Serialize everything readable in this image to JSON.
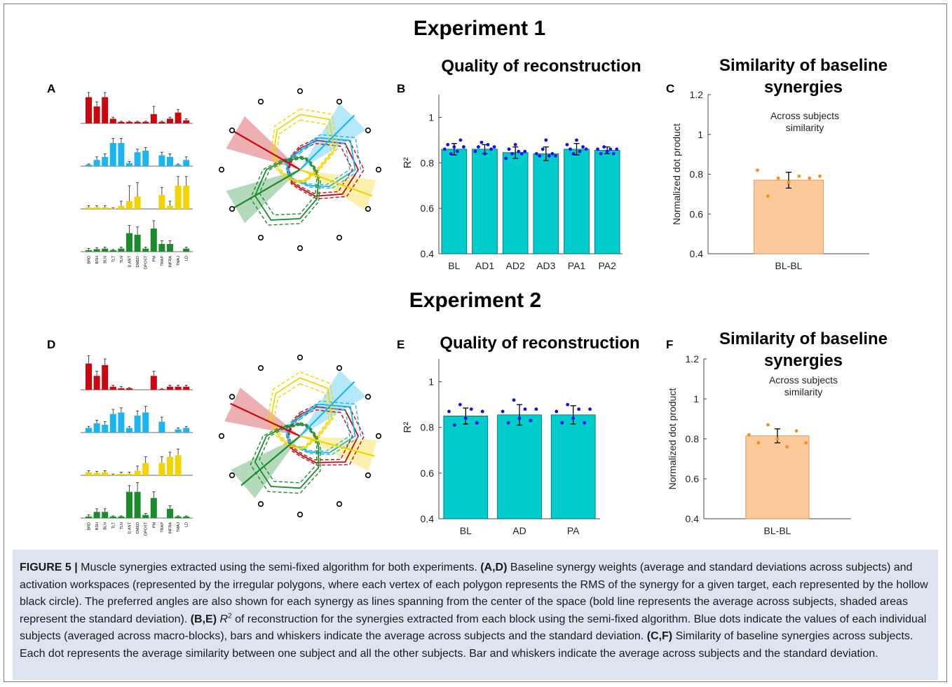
{
  "experiments": [
    {
      "heading": "Experiment 1",
      "panel_weights": "A",
      "panel_quality": "B",
      "panel_similarity": "C",
      "synergy_bars": [
        [
          0.85,
          0.55,
          0.85,
          0.15,
          0.05,
          0.05,
          0.05,
          0.05,
          0.3,
          0.05,
          0.15,
          0.35,
          0.1
        ],
        [
          0.05,
          0.2,
          0.3,
          0.75,
          0.75,
          0.1,
          0.45,
          0.5,
          0.0,
          0.35,
          0.3,
          0.05,
          0.2
        ],
        [
          0.05,
          0.05,
          0.05,
          0.02,
          0.1,
          0.25,
          0.4,
          0.0,
          0.0,
          0.45,
          0.1,
          0.75,
          0.75
        ],
        [
          0.05,
          0.08,
          0.1,
          0.05,
          0.1,
          0.6,
          0.55,
          0.1,
          0.75,
          0.25,
          0.25,
          0.0,
          0.1
        ]
      ],
      "synergy_errors": [
        [
          0.15,
          0.15,
          0.15,
          0.05,
          0.02,
          0.02,
          0.02,
          0.02,
          0.25,
          0.02,
          0.05,
          0.1,
          0.05
        ],
        [
          0.02,
          0.1,
          0.1,
          0.15,
          0.15,
          0.05,
          0.1,
          0.1,
          0.0,
          0.1,
          0.1,
          0.02,
          0.1
        ],
        [
          0.05,
          0.05,
          0.05,
          0.02,
          0.15,
          0.5,
          0.45,
          0.0,
          0.0,
          0.25,
          0.15,
          0.3,
          0.3
        ],
        [
          0.05,
          0.05,
          0.05,
          0.02,
          0.05,
          0.25,
          0.25,
          0.05,
          0.25,
          0.1,
          0.1,
          0.0,
          0.05
        ]
      ],
      "muscles": [
        "BRD",
        "BSH",
        "BLN",
        "TLT",
        "TLN",
        "D.ANT",
        "DMED",
        "DPOST",
        "PM",
        "TRAP",
        "INFRA",
        "TMAJ",
        "LD"
      ],
      "workspace": {
        "preferred_angles_deg": [
          150,
          45,
          -20,
          210
        ],
        "spreads_deg": [
          14,
          14,
          12,
          14
        ],
        "rms": [
          [
            0.35,
            0.55,
            0.85,
            0.95,
            0.8,
            0.5,
            0.3,
            0.25,
            0.2,
            0.2,
            0.2,
            0.25
          ],
          [
            0.3,
            0.6,
            0.95,
            0.9,
            0.55,
            0.3,
            0.2,
            0.2,
            0.2,
            0.2,
            0.25,
            0.25
          ],
          [
            0.9,
            0.95,
            0.65,
            0.3,
            0.2,
            0.2,
            0.2,
            0.2,
            0.25,
            0.35,
            0.5,
            0.75
          ],
          [
            0.2,
            0.2,
            0.2,
            0.25,
            0.35,
            0.55,
            0.8,
            0.95,
            0.85,
            0.55,
            0.3,
            0.2
          ]
        ]
      },
      "quality": {
        "title": "Quality of reconstruction",
        "ylabel": "R²",
        "yticks": [
          "0.4",
          "0.6",
          "0.8",
          "1"
        ],
        "categories": [
          "BL",
          "AD1",
          "AD2",
          "AD3",
          "PA1",
          "PA2"
        ],
        "values": [
          0.86,
          0.86,
          0.845,
          0.84,
          0.86,
          0.855
        ],
        "errors": [
          0.025,
          0.02,
          0.025,
          0.03,
          0.025,
          0.015
        ],
        "dots": [
          [
            0.86,
            0.88,
            0.84,
            0.87,
            0.85,
            0.9,
            0.87
          ],
          [
            0.85,
            0.87,
            0.89,
            0.84,
            0.88,
            0.86,
            0.87
          ],
          [
            0.82,
            0.86,
            0.84,
            0.88,
            0.85,
            0.84,
            0.85
          ],
          [
            0.84,
            0.83,
            0.86,
            0.9,
            0.83,
            0.84,
            0.83
          ],
          [
            0.88,
            0.86,
            0.84,
            0.9,
            0.85,
            0.87,
            0.86
          ],
          [
            0.86,
            0.84,
            0.87,
            0.85,
            0.86,
            0.84,
            0.86
          ]
        ]
      },
      "similarity": {
        "title_line1": "Similarity of baseline",
        "title_line2": "synergies",
        "annotation_line1": "Across subjects",
        "annotation_line2": "similarity",
        "ylabel": "Normalized dot product",
        "yticks": [
          "0.4",
          "0.6",
          "0.8",
          "1",
          "1.2"
        ],
        "category": "BL-BL",
        "value": 0.77,
        "error": 0.04,
        "dots": [
          0.82,
          0.69,
          0.78,
          0.76,
          0.79,
          0.78,
          0.79
        ]
      }
    },
    {
      "heading": "Experiment 2",
      "panel_weights": "D",
      "panel_quality": "E",
      "panel_similarity": "F",
      "synergy_bars": [
        [
          0.85,
          0.45,
          0.8,
          0.1,
          0.05,
          0.05,
          0.0,
          0.0,
          0.45,
          0.02,
          0.1,
          0.1,
          0.1
        ],
        [
          0.15,
          0.3,
          0.25,
          0.6,
          0.65,
          0.15,
          0.55,
          0.65,
          0.0,
          0.35,
          0.0,
          0.1,
          0.15
        ],
        [
          0.1,
          0.08,
          0.1,
          0.02,
          0.05,
          0.05,
          0.15,
          0.4,
          0.0,
          0.4,
          0.6,
          0.65,
          0.0
        ],
        [
          0.05,
          0.2,
          0.2,
          0.05,
          0.05,
          0.85,
          0.85,
          0.1,
          0.65,
          0.0,
          0.3,
          0.05,
          0.05
        ]
      ],
      "synergy_errors": [
        [
          0.25,
          0.15,
          0.2,
          0.05,
          0.05,
          0.02,
          0.0,
          0.0,
          0.15,
          0.02,
          0.05,
          0.05,
          0.05
        ],
        [
          0.05,
          0.1,
          0.1,
          0.15,
          0.15,
          0.05,
          0.15,
          0.2,
          0.0,
          0.15,
          0.0,
          0.05,
          0.05
        ],
        [
          0.05,
          0.05,
          0.05,
          0.02,
          0.05,
          0.05,
          0.15,
          0.2,
          0.0,
          0.2,
          0.15,
          0.2,
          0.0
        ],
        [
          0.05,
          0.1,
          0.1,
          0.02,
          0.02,
          0.2,
          0.3,
          0.05,
          0.2,
          0.0,
          0.1,
          0.02,
          0.02
        ]
      ],
      "muscles": [
        "BRD",
        "BSH",
        "BLN",
        "TLT",
        "TLN",
        "D.ANT",
        "DMED",
        "DPOST",
        "PM",
        "TRAP",
        "INFRA",
        "TMAJ",
        "LD"
      ],
      "workspace": {
        "preferred_angles_deg": [
          155,
          45,
          -15,
          220
        ],
        "spreads_deg": [
          14,
          14,
          12,
          14
        ],
        "rms": [
          [
            0.35,
            0.55,
            0.85,
            0.95,
            0.85,
            0.5,
            0.3,
            0.25,
            0.2,
            0.2,
            0.2,
            0.25
          ],
          [
            0.3,
            0.6,
            0.95,
            0.9,
            0.55,
            0.3,
            0.2,
            0.2,
            0.2,
            0.2,
            0.25,
            0.25
          ],
          [
            0.95,
            0.9,
            0.6,
            0.3,
            0.2,
            0.2,
            0.2,
            0.2,
            0.25,
            0.35,
            0.55,
            0.8
          ],
          [
            0.2,
            0.2,
            0.2,
            0.25,
            0.35,
            0.6,
            0.85,
            0.95,
            0.85,
            0.55,
            0.3,
            0.2
          ]
        ]
      },
      "quality": {
        "title": "Quality of reconstruction",
        "ylabel": "R²",
        "yticks": [
          "0.4",
          "0.6",
          "0.8",
          "1"
        ],
        "categories": [
          "BL",
          "AD",
          "PA"
        ],
        "values": [
          0.85,
          0.855,
          0.855
        ],
        "errors": [
          0.035,
          0.045,
          0.04
        ],
        "dots": [
          [
            0.87,
            0.81,
            0.9,
            0.84,
            0.88,
            0.82,
            0.87
          ],
          [
            0.87,
            0.82,
            0.92,
            0.84,
            0.88,
            0.83,
            0.88
          ],
          [
            0.87,
            0.82,
            0.9,
            0.84,
            0.88,
            0.82,
            0.88
          ]
        ]
      },
      "similarity": {
        "title_line1": "Similarity of baseline",
        "title_line2": "synergies",
        "annotation_line1": "Across subjects",
        "annotation_line2": "similarity",
        "ylabel": "Normalized dot product",
        "yticks": [
          "0.4",
          "0.6",
          "0.8",
          "1",
          "1.2"
        ],
        "category": "BL-BL",
        "value": 0.815,
        "error": 0.035,
        "dots": [
          0.82,
          0.78,
          0.87,
          0.8,
          0.76,
          0.84,
          0.78
        ]
      }
    }
  ],
  "colors": {
    "red": "#c8080e",
    "blue": "#1ab6f0",
    "yellow": "#f4d400",
    "green": "#1a8c2c",
    "teal_bar": "#00cccc",
    "teal_edge": "#006666",
    "dot_blue": "#1010ee",
    "peach_bar": "#fbc99a",
    "dot_orange": "#f29020",
    "caption_bg": "#dce4f0"
  },
  "caption": {
    "label": "FIGURE 5 |",
    "intro": "Muscle synergies extracted using the semi-fixed algorithm for both experiments.",
    "ad_label": "(A,D)",
    "ad_text": "Baseline synergy weights (average and standard deviations across subjects) and activation workspaces (represented by the irregular polygons, where each vertex of each polygon represents the RMS of the synergy for a given target, each represented by the hollow black circle). The preferred angles are also shown for each synergy as lines spanning from the center of the space (bold line represents the average across subjects, shaded areas represent the standard deviation).",
    "be_label": "(B,E)",
    "be_r": "R",
    "be_sup": "2",
    "be_text": "of reconstruction for the synergies extracted from each block using the semi-fixed algorithm. Blue dots indicate the values of each individual subjects (averaged across macro-blocks), bars and whiskers indicate the average across subjects and the standard deviation.",
    "cf_label": "(C,F)",
    "cf_text": "Similarity of baseline synergies across subjects. Each dot represents the average similarity between one subject and all the other subjects. Bar and whiskers indicate the average across subjects and the standard deviation."
  }
}
